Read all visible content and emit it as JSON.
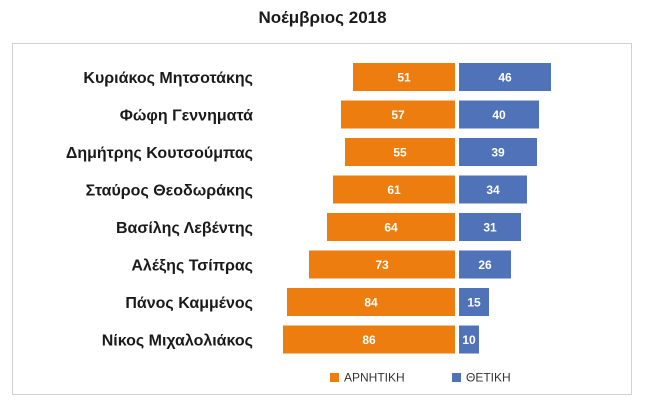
{
  "chart_data": {
    "type": "bar",
    "title": "Νοέμβριος 2018",
    "orientation": "horizontal-diverging",
    "categories": [
      "Κυριάκος Μητσοτάκης",
      "Φώφη Γεννηματά",
      "Δημήτρης Κουτσούμπας",
      "Σταύρος Θεοδωράκης",
      "Βασίλης Λεβέντης",
      "Αλέξης Τσίπρας",
      "Πάνος Καμμένος",
      "Νίκος Μιχαλολιάκος"
    ],
    "series": [
      {
        "name": "ΑΡΝΗΤΙΚΗ",
        "color": "#ED7D0F",
        "direction": "left",
        "values": [
          51,
          57,
          55,
          61,
          64,
          73,
          84,
          86
        ]
      },
      {
        "name": "ΘΕΤΙΚΗ",
        "color": "#4F72B8",
        "direction": "right",
        "values": [
          46,
          40,
          39,
          34,
          31,
          26,
          15,
          10
        ]
      }
    ],
    "legend_position": "bottom-right",
    "grid": false
  }
}
